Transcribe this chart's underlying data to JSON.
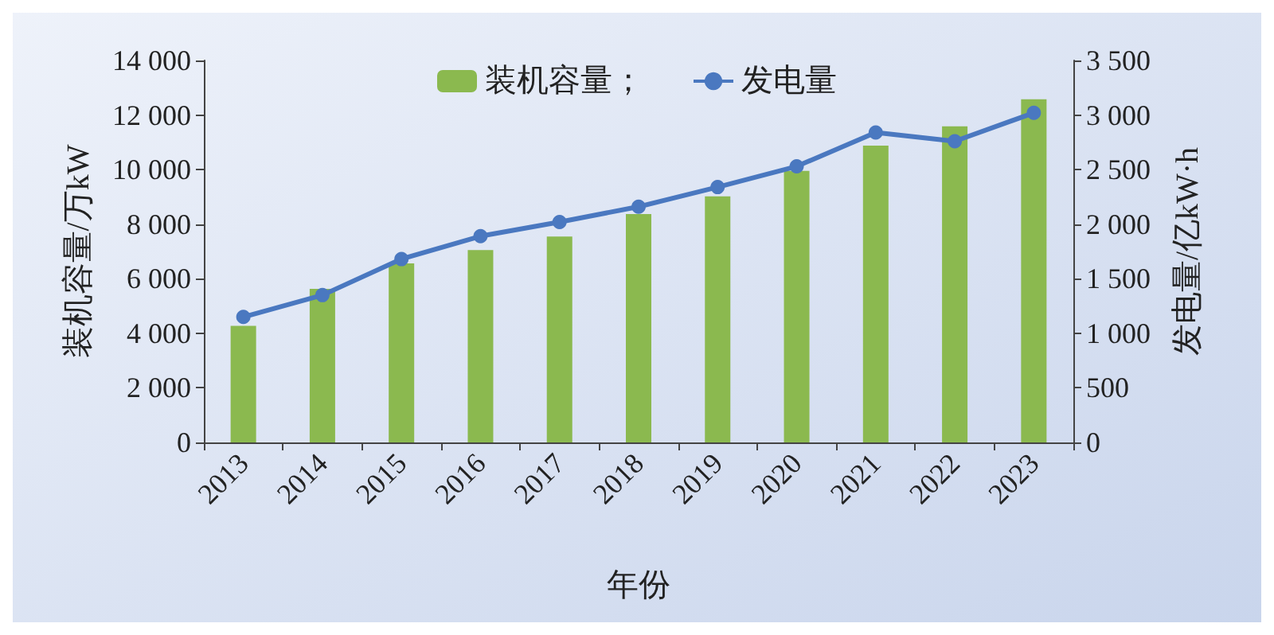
{
  "chart_data": {
    "type": "bar",
    "xlabel": "年份",
    "ylabel": "装机容量/万kW",
    "y2label": "发电量/亿kW·h",
    "categories": [
      "2013",
      "2014",
      "2015",
      "2016",
      "2017",
      "2018",
      "2019",
      "2020",
      "2021",
      "2022",
      "2023"
    ],
    "series": [
      {
        "name": "装机容量；",
        "color": "#8bb94f",
        "values": [
          4270,
          5630,
          6560,
          7050,
          7550,
          8370,
          9020,
          9950,
          10880,
          11590,
          12580
        ]
      },
      {
        "name": "发电量",
        "type": "line",
        "axis": "y2",
        "color": "#4a78c0",
        "values": [
          1150,
          1350,
          1680,
          1890,
          2020,
          2160,
          2340,
          2530,
          2840,
          2760,
          3020
        ]
      }
    ],
    "ylim": [
      0,
      14000
    ],
    "yticks": [
      0,
      {
        "value": 2000,
        "label": "2 000"
      },
      {
        "value": 4000,
        "label": "4 000"
      },
      {
        "value": 6000,
        "label": "6 000"
      },
      {
        "value": 8000,
        "label": "8 000"
      },
      {
        "value": 10000,
        "label": "10 000"
      },
      {
        "value": 12000,
        "label": "12 000"
      },
      {
        "value": 14000,
        "label": "14 000"
      }
    ],
    "y2lim": [
      0,
      3500
    ],
    "y2ticks": [
      0,
      500,
      {
        "value": 1000,
        "label": "1 000"
      },
      {
        "value": 1500,
        "label": "1 500"
      },
      {
        "value": 2000,
        "label": "2 000"
      },
      {
        "value": 2500,
        "label": "2 500"
      },
      {
        "value": 3000,
        "label": "3 000"
      },
      {
        "value": 3500,
        "label": "3 500"
      }
    ],
    "grid": false,
    "legend": "top",
    "marker": "circle",
    "line_style": "solid"
  }
}
